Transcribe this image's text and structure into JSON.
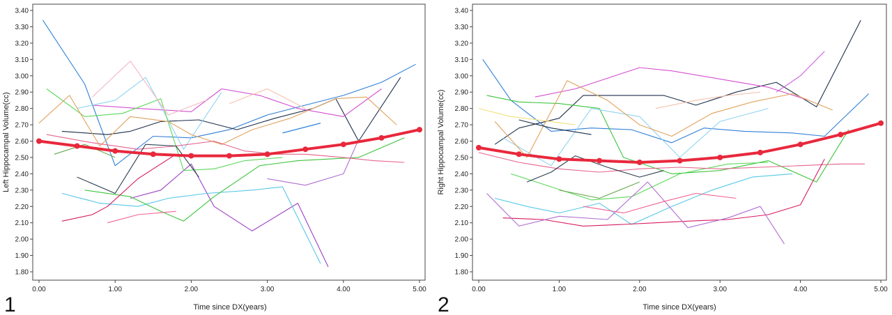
{
  "chart_data": [
    {
      "type": "line",
      "panel_label": "1",
      "xlabel": "Time since DX(years)",
      "ylabel": "Left Hippocampal Volume(cc)",
      "xlim": [
        0,
        5
      ],
      "ylim": [
        1.8,
        3.4
      ],
      "x_ticks": [
        "0.00",
        "1.00",
        "2.00",
        "3.00",
        "4.00",
        "5.00"
      ],
      "y_ticks": [
        "1.80",
        "1.90",
        "2.00",
        "2.10",
        "2.20",
        "2.30",
        "2.40",
        "2.50",
        "2.60",
        "2.70",
        "2.80",
        "2.90",
        "3.00",
        "3.10",
        "3.20",
        "3.30",
        "3.40"
      ],
      "grid": false,
      "fit": {
        "color": "#e8283c",
        "x": [
          0.0,
          0.5,
          1.0,
          1.5,
          2.0,
          2.5,
          3.0,
          3.5,
          4.0,
          4.5,
          5.0
        ],
        "y": [
          2.6,
          2.57,
          2.54,
          2.52,
          2.51,
          2.51,
          2.52,
          2.55,
          2.58,
          2.62,
          2.67
        ]
      },
      "series": [
        {
          "color": "#2f7fd6",
          "x": [
            0.05,
            0.6,
            1.0,
            1.5,
            2.0,
            2.5,
            3.0,
            3.5,
            4.0,
            4.5,
            4.95
          ],
          "y": [
            3.34,
            2.95,
            2.45,
            2.63,
            2.62,
            2.67,
            2.76,
            2.82,
            2.88,
            2.96,
            3.07
          ]
        },
        {
          "color": "#1d2e4a",
          "x": [
            0.3,
            0.9,
            1.2,
            1.6,
            2.1,
            2.6,
            3.1,
            3.6,
            3.9,
            4.2,
            4.75
          ],
          "y": [
            2.66,
            2.64,
            2.66,
            2.72,
            2.73,
            2.67,
            2.74,
            2.8,
            2.86,
            2.6,
            2.99
          ]
        },
        {
          "color": "#9b3fc4",
          "x": [
            1.2,
            1.6,
            2.0,
            2.3,
            2.8,
            3.4,
            3.8
          ],
          "y": [
            2.25,
            2.3,
            2.46,
            2.2,
            2.05,
            2.22,
            1.83
          ]
        },
        {
          "color": "#d34fd0",
          "x": [
            0.7,
            1.3,
            2.0,
            2.4,
            2.9,
            3.4,
            4.0,
            4.5
          ],
          "y": [
            2.82,
            2.8,
            2.78,
            2.92,
            2.88,
            2.8,
            2.75,
            2.92
          ]
        },
        {
          "color": "#56c7e8",
          "x": [
            0.3,
            0.8,
            1.3,
            1.7,
            2.2,
            2.8,
            3.2,
            3.7
          ],
          "y": [
            2.28,
            2.22,
            2.2,
            2.25,
            2.28,
            2.3,
            2.32,
            1.85
          ]
        },
        {
          "color": "#8fd3f1",
          "x": [
            0.5,
            1.0,
            1.4,
            1.9,
            2.4
          ],
          "y": [
            2.8,
            2.85,
            2.99,
            2.55,
            2.9
          ]
        },
        {
          "color": "#5bd75b",
          "x": [
            0.1,
            0.6,
            1.1,
            1.6,
            1.9,
            2.3,
            2.7,
            3.2
          ],
          "y": [
            2.92,
            2.75,
            2.77,
            2.86,
            2.42,
            2.43,
            2.48,
            2.5
          ]
        },
        {
          "color": "#3cc43c",
          "x": [
            0.6,
            1.2,
            1.6,
            1.9,
            2.3,
            2.9,
            3.4,
            4.2,
            4.8
          ],
          "y": [
            2.3,
            2.26,
            2.17,
            2.11,
            2.26,
            2.45,
            2.48,
            2.5,
            2.62
          ]
        },
        {
          "color": "#e0a25c",
          "x": [
            0.0,
            0.4,
            0.8,
            1.2,
            1.7,
            2.0,
            2.4,
            2.8,
            3.3,
            3.9,
            4.3,
            4.7
          ],
          "y": [
            2.71,
            2.88,
            2.57,
            2.75,
            2.72,
            2.64,
            2.58,
            2.67,
            2.74,
            2.86,
            2.87,
            2.7
          ]
        },
        {
          "color": "#e4638c",
          "x": [
            0.1,
            0.7,
            1.3,
            1.8,
            2.3,
            2.7,
            3.1,
            3.5,
            4.0,
            4.4,
            4.8
          ],
          "y": [
            2.64,
            2.59,
            2.55,
            2.57,
            2.6,
            2.54,
            2.52,
            2.52,
            2.5,
            2.48,
            2.47
          ]
        },
        {
          "color": "#d81b60",
          "x": [
            0.3,
            0.7,
            0.9,
            1.3,
            1.8
          ],
          "y": [
            2.11,
            2.15,
            2.2,
            2.37,
            2.52
          ]
        },
        {
          "color": "#f06292",
          "x": [
            0.9,
            1.3,
            1.8
          ],
          "y": [
            2.1,
            2.15,
            2.17
          ]
        },
        {
          "color": "#2c3e50",
          "x": [
            0.5,
            1.0,
            1.4,
            1.8,
            2.1
          ],
          "y": [
            2.38,
            2.28,
            2.58,
            2.57,
            2.38
          ]
        },
        {
          "color": "#f4b6c2",
          "x": [
            0.7,
            1.2,
            1.7,
            2.2
          ],
          "y": [
            2.87,
            3.09,
            2.76,
            2.85
          ]
        },
        {
          "color": "#f5c2ad",
          "x": [
            2.5,
            3.0,
            3.5
          ],
          "y": [
            2.83,
            2.92,
            2.8
          ]
        },
        {
          "color": "#6aa84f",
          "x": [
            0.2,
            0.6,
            1.0
          ],
          "y": [
            2.52,
            2.58,
            2.5
          ]
        },
        {
          "color": "#1976d2",
          "x": [
            3.2,
            3.7
          ],
          "y": [
            2.65,
            2.71
          ]
        },
        {
          "color": "#b06fd0",
          "x": [
            3.0,
            3.5,
            4.0,
            4.2
          ],
          "y": [
            2.37,
            2.33,
            2.4,
            2.61
          ]
        }
      ]
    },
    {
      "type": "line",
      "panel_label": "2",
      "xlabel": "Time since DX(years)",
      "ylabel": "Right Hippocampal Volume(cc)",
      "xlim": [
        0,
        5
      ],
      "ylim": [
        1.8,
        3.4
      ],
      "x_ticks": [
        "0.00",
        "1.00",
        "2.00",
        "3.00",
        "4.00",
        "5.00"
      ],
      "y_ticks": [
        "1.80",
        "1.90",
        "2.00",
        "2.10",
        "2.20",
        "2.30",
        "2.40",
        "2.50",
        "2.60",
        "2.70",
        "2.80",
        "2.90",
        "3.00",
        "3.10",
        "3.20",
        "3.30",
        "3.40"
      ],
      "grid": false,
      "fit": {
        "color": "#e8283c",
        "x": [
          0.0,
          0.5,
          1.0,
          1.5,
          2.0,
          2.5,
          3.0,
          3.5,
          4.0,
          4.5,
          5.0
        ],
        "y": [
          2.56,
          2.52,
          2.49,
          2.48,
          2.47,
          2.48,
          2.5,
          2.53,
          2.58,
          2.64,
          2.71
        ]
      },
      "series": [
        {
          "color": "#1d2e4a",
          "x": [
            0.2,
            0.5,
            1.0,
            1.3,
            1.8,
            2.3,
            2.7,
            3.2,
            3.7,
            4.2,
            4.75
          ],
          "y": [
            2.58,
            2.68,
            2.74,
            2.88,
            2.88,
            2.88,
            2.82,
            2.9,
            2.96,
            2.81,
            3.34
          ]
        },
        {
          "color": "#2f7fd6",
          "x": [
            0.05,
            0.4,
            0.9,
            1.4,
            1.9,
            2.4,
            2.8,
            3.3,
            3.9,
            4.3,
            4.85
          ],
          "y": [
            3.1,
            2.85,
            2.66,
            2.68,
            2.67,
            2.59,
            2.68,
            2.66,
            2.65,
            2.63,
            2.89
          ]
        },
        {
          "color": "#d34fd0",
          "x": [
            0.7,
            1.2,
            2.0,
            2.4,
            3.0,
            3.6,
            4.1
          ],
          "y": [
            2.87,
            2.92,
            3.05,
            3.03,
            2.98,
            2.93,
            2.85
          ]
        },
        {
          "color": "#cd5fe0",
          "x": [
            3.7,
            4.0,
            4.3
          ],
          "y": [
            2.9,
            3.0,
            3.15
          ]
        },
        {
          "color": "#3cc43c",
          "x": [
            0.1,
            0.5,
            1.0,
            1.5,
            1.8,
            2.4,
            3.0,
            3.6,
            4.2,
            4.6
          ],
          "y": [
            2.88,
            2.84,
            2.83,
            2.8,
            2.5,
            2.4,
            2.42,
            2.48,
            2.35,
            2.67
          ]
        },
        {
          "color": "#5bd75b",
          "x": [
            0.4,
            0.9,
            1.4,
            1.9,
            2.5,
            3.1,
            3.6
          ],
          "y": [
            2.4,
            2.32,
            2.24,
            2.26,
            2.4,
            2.46,
            2.47
          ]
        },
        {
          "color": "#56c7e8",
          "x": [
            0.2,
            0.6,
            1.0,
            1.5,
            1.9,
            2.4,
            2.9,
            3.4,
            3.9
          ],
          "y": [
            2.25,
            2.2,
            2.16,
            2.22,
            2.09,
            2.2,
            2.3,
            2.38,
            2.4
          ]
        },
        {
          "color": "#8fd3f1",
          "x": [
            0.3,
            0.9,
            1.4,
            2.0,
            2.5,
            3.0,
            3.6
          ],
          "y": [
            2.62,
            2.45,
            2.8,
            2.75,
            2.5,
            2.72,
            2.8
          ]
        },
        {
          "color": "#e4638c",
          "x": [
            0.0,
            0.5,
            1.0,
            1.5,
            2.0,
            2.5,
            3.0,
            3.5,
            4.0,
            4.5,
            4.8
          ],
          "y": [
            2.53,
            2.47,
            2.43,
            2.41,
            2.43,
            2.44,
            2.43,
            2.44,
            2.45,
            2.46,
            2.46
          ]
        },
        {
          "color": "#d81b60",
          "x": [
            0.3,
            0.8,
            1.3,
            1.8,
            2.2,
            2.6,
            3.1,
            3.6,
            4.0,
            4.3
          ],
          "y": [
            2.13,
            2.12,
            2.08,
            2.09,
            2.1,
            2.11,
            2.12,
            2.15,
            2.21,
            2.49
          ]
        },
        {
          "color": "#b06fd0",
          "x": [
            0.1,
            0.5,
            1.0,
            1.6,
            2.1,
            2.6,
            3.1,
            3.5,
            3.8
          ],
          "y": [
            2.28,
            2.08,
            2.14,
            2.12,
            2.35,
            2.07,
            2.13,
            2.2,
            1.97
          ]
        },
        {
          "color": "#e0a25c",
          "x": [
            0.2,
            0.6,
            1.1,
            1.6,
            2.0,
            2.4,
            2.9,
            3.4,
            3.9,
            4.4
          ],
          "y": [
            2.72,
            2.5,
            2.97,
            2.85,
            2.7,
            2.63,
            2.77,
            2.84,
            2.89,
            2.79
          ]
        },
        {
          "color": "#2c3e50",
          "x": [
            0.6,
            0.9,
            1.2,
            1.6,
            2.0,
            2.3
          ],
          "y": [
            2.35,
            2.41,
            2.51,
            2.44,
            2.38,
            2.42
          ]
        },
        {
          "color": "#f06292",
          "x": [
            1.3,
            1.8,
            2.3,
            2.7,
            3.2
          ],
          "y": [
            2.2,
            2.16,
            2.23,
            2.28,
            2.25
          ]
        },
        {
          "color": "#f4e17a",
          "x": [
            0.0,
            0.4,
            0.9,
            1.2
          ],
          "y": [
            2.8,
            2.75,
            2.72,
            2.7
          ]
        },
        {
          "color": "#1d2e4a",
          "x": [
            0.5,
            0.9,
            1.4
          ],
          "y": [
            2.73,
            2.68,
            2.64
          ]
        },
        {
          "color": "#f5c2ad",
          "x": [
            2.2,
            2.7,
            3.1,
            3.5
          ],
          "y": [
            2.8,
            2.85,
            2.88,
            2.9
          ]
        },
        {
          "color": "#6aa84f",
          "x": [
            1.0,
            1.5,
            2.0
          ],
          "y": [
            2.3,
            2.25,
            2.35
          ]
        }
      ]
    }
  ]
}
